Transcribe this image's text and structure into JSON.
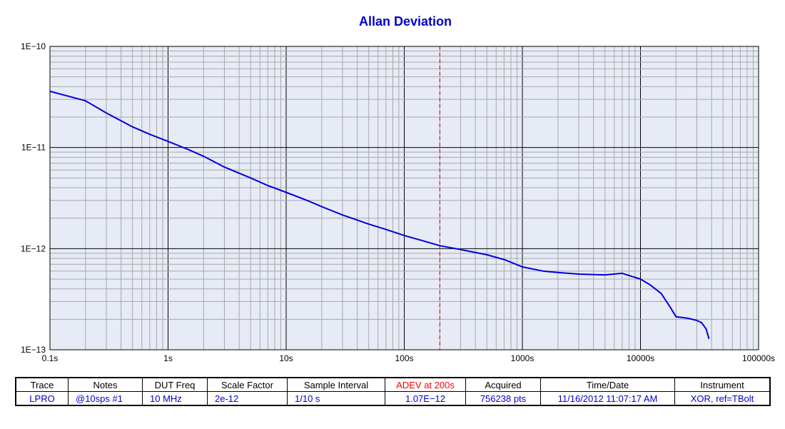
{
  "colors": {
    "plot_bg": "#e6ebf6",
    "trace": "#0000dd",
    "title": "#0000cc",
    "marker": "#cc0000",
    "grid_major": "#000000",
    "grid_minor": "#a8a8a8"
  },
  "chart_data": {
    "type": "line",
    "title": "Allan Deviation",
    "x_scale": "log",
    "y_scale": "log",
    "xlim": [
      0.1,
      100000
    ],
    "ylim": [
      1e-13,
      1e-10
    ],
    "grid": true,
    "x_ticks": [
      {
        "value": 0.1,
        "label": "0.1s"
      },
      {
        "value": 1,
        "label": "1s"
      },
      {
        "value": 10,
        "label": "10s"
      },
      {
        "value": 100,
        "label": "100s"
      },
      {
        "value": 1000,
        "label": "1000s"
      },
      {
        "value": 10000,
        "label": "10000s"
      },
      {
        "value": 100000,
        "label": "100000s"
      }
    ],
    "y_ticks": [
      {
        "value": 1e-10,
        "label": "1E−10"
      },
      {
        "value": 1e-11,
        "label": "1E−11"
      },
      {
        "value": 1e-12,
        "label": "1E−12"
      },
      {
        "value": 1e-13,
        "label": "1E−13"
      }
    ],
    "marker_x": 200,
    "series": [
      {
        "name": "LPRO",
        "x": [
          0.1,
          0.2,
          0.3,
          0.5,
          0.7,
          1,
          1.5,
          2,
          3,
          5,
          7,
          10,
          15,
          20,
          30,
          50,
          70,
          100,
          150,
          200,
          300,
          500,
          700,
          1000,
          1500,
          2000,
          3000,
          5000,
          7000,
          10000,
          12000,
          15000,
          18000,
          20000,
          25000,
          30000,
          33000,
          36000,
          38000
        ],
        "y": [
          3.6e-11,
          2.9e-11,
          2.2e-11,
          1.6e-11,
          1.35e-11,
          1.15e-11,
          9.5e-12,
          8.2e-12,
          6.4e-12,
          5e-12,
          4.2e-12,
          3.6e-12,
          3e-12,
          2.6e-12,
          2.15e-12,
          1.75e-12,
          1.55e-12,
          1.35e-12,
          1.18e-12,
          1.07e-12,
          9.8e-13,
          8.7e-13,
          7.8e-13,
          6.6e-13,
          6e-13,
          5.8e-13,
          5.6e-13,
          5.5e-13,
          5.7e-13,
          5e-13,
          4.4e-13,
          3.6e-13,
          2.6e-13,
          2.12e-13,
          2.05e-13,
          1.95e-13,
          1.85e-13,
          1.6e-13,
          1.28e-13
        ]
      }
    ]
  },
  "table": {
    "headers": [
      "Trace",
      "Notes",
      "DUT Freq",
      "Scale Factor",
      "Sample Interval",
      "ADEV at 200s",
      "Acquired",
      "Time/Date",
      "Instrument"
    ],
    "row": [
      "LPRO",
      "@10sps #1",
      "10 MHz",
      "2e-12",
      "1/10 s",
      "1.07E−12",
      "756238 pts",
      "11/16/2012 11:07:17 AM",
      "XOR, ref=TBolt"
    ]
  }
}
